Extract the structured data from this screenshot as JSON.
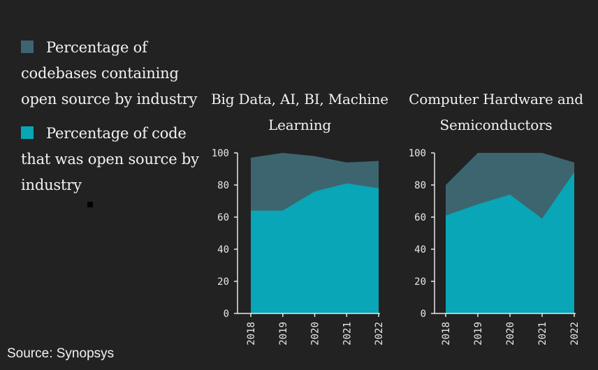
{
  "legend": {
    "codebases_label": "Percentage of codebases containing open source by industry",
    "code_label": "Percentage of code that was open source by industry"
  },
  "colors": {
    "codebases": "#3d6570",
    "code": "#08a6b6",
    "background": "#222222",
    "axis": "#e8e8e8"
  },
  "source": "Source: Synopsys",
  "chart_data": [
    {
      "type": "area",
      "title": "Big Data, AI, BI, Machine Learning",
      "x": [
        "2018",
        "2019",
        "2020",
        "2021",
        "2022"
      ],
      "ylim": [
        0,
        100
      ],
      "yticks": [
        0,
        20,
        40,
        60,
        80,
        100
      ],
      "series": [
        {
          "name": "Percentage of codebases containing open source by industry",
          "values": [
            97,
            100,
            98,
            94,
            95
          ]
        },
        {
          "name": "Percentage of code that was open source by industry",
          "values": [
            64,
            64,
            76,
            81,
            78
          ]
        }
      ]
    },
    {
      "type": "area",
      "title": "Computer Hardware and Semiconductors",
      "x": [
        "2018",
        "2019",
        "2020",
        "2021",
        "2022"
      ],
      "ylim": [
        0,
        100
      ],
      "yticks": [
        0,
        20,
        40,
        60,
        80,
        100
      ],
      "series": [
        {
          "name": "Percentage of codebases containing open source by industry",
          "values": [
            80,
            100,
            100,
            100,
            94
          ]
        },
        {
          "name": "Percentage of code that was open source by industry",
          "values": [
            61,
            68,
            74,
            59,
            88
          ]
        }
      ]
    }
  ]
}
